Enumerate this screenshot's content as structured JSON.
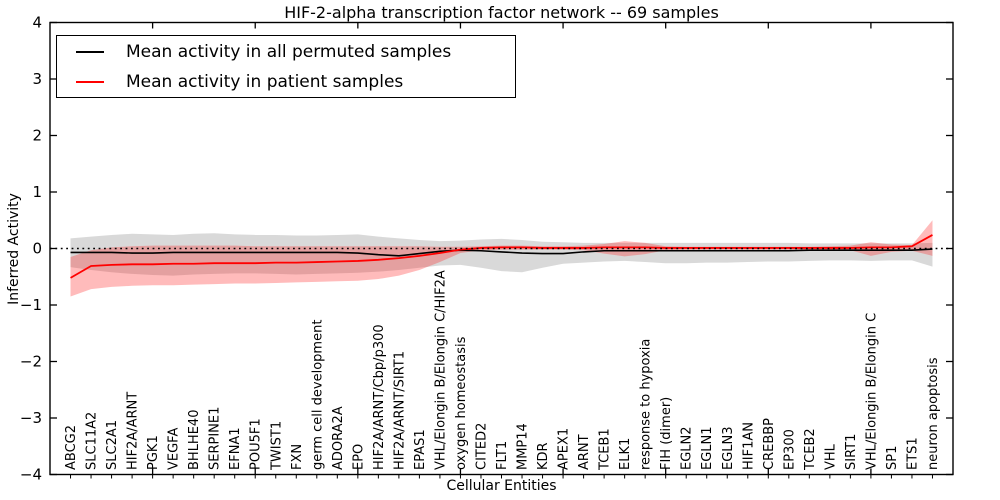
{
  "chart_data": {
    "type": "line",
    "title": "HIF-2-alpha transcription factor network -- 69 samples",
    "xlabel": "Cellular Entities",
    "ylabel": "Inferred Activity",
    "ylim": [
      -4,
      4
    ],
    "xlim": [
      0,
      44
    ],
    "grid": false,
    "legend_position": "upper left",
    "zero_reference_line": {
      "y": 0,
      "style": "dotted",
      "color": "#000000"
    },
    "yticks": [
      {
        "value": 4,
        "label": "4"
      },
      {
        "value": 3,
        "label": "3"
      },
      {
        "value": 2,
        "label": "2"
      },
      {
        "value": 1,
        "label": "1"
      },
      {
        "value": 0,
        "label": "0"
      },
      {
        "value": -1,
        "label": "−1"
      },
      {
        "value": -2,
        "label": "−2"
      },
      {
        "value": -3,
        "label": "−3"
      },
      {
        "value": -4,
        "label": "−4"
      }
    ],
    "xticks_major": [
      5,
      10,
      15,
      20,
      25,
      30,
      35,
      40
    ],
    "x_start": 1,
    "categories": [
      "ABCG2",
      "SLC11A2",
      "SLC2A1",
      "HIF2A/ARNT",
      "PGK1",
      "VEGFA",
      "BHLHE40",
      "SERPINE1",
      "EFNA1",
      "POU5F1",
      "TWIST1",
      "FXN",
      "germ cell development",
      "ADORA2A",
      "EPO",
      "HIF2A/ARNT/Cbp/p300",
      "HIF2A/ARNT/SIRT1",
      "EPAS1",
      "VHL/Elongin B/Elongin C/HIF2A",
      "oxygen homeostasis",
      "CITED2",
      "FLT1",
      "MMP14",
      "KDR",
      "APEX1",
      "ARNT",
      "TCEB1",
      "ELK1",
      "response to hypoxia",
      "FIH (dimer)",
      "EGLN2",
      "EGLN1",
      "EGLN3",
      "HIF1AN",
      "CREBBP",
      "EP300",
      "TCEB2",
      "VHL",
      "SIRT1",
      "VHL/Elongin B/Elongin C",
      "SP1",
      "ETS1",
      "neuron apoptosis"
    ],
    "series": [
      {
        "name": "Mean activity in all permuted samples",
        "color": "#000000",
        "band_color": "rgba(120,120,120,0.28)",
        "line_width": 1.6,
        "values": [
          -0.07,
          -0.07,
          -0.07,
          -0.08,
          -0.08,
          -0.07,
          -0.07,
          -0.07,
          -0.07,
          -0.07,
          -0.07,
          -0.07,
          -0.07,
          -0.07,
          -0.08,
          -0.11,
          -0.13,
          -0.09,
          -0.05,
          -0.03,
          -0.04,
          -0.06,
          -0.08,
          -0.09,
          -0.09,
          -0.06,
          -0.04,
          -0.04,
          -0.04,
          -0.04,
          -0.04,
          -0.04,
          -0.04,
          -0.04,
          -0.04,
          -0.04,
          -0.03,
          -0.03,
          -0.03,
          -0.03,
          -0.03,
          -0.03,
          -0.01
        ],
        "band_upper": [
          0.18,
          0.21,
          0.24,
          0.26,
          0.25,
          0.24,
          0.26,
          0.27,
          0.25,
          0.24,
          0.24,
          0.23,
          0.23,
          0.24,
          0.25,
          0.21,
          0.18,
          0.15,
          0.13,
          0.14,
          0.16,
          0.17,
          0.15,
          0.12,
          0.11,
          0.1,
          0.1,
          0.1,
          0.1,
          0.1,
          0.1,
          0.1,
          0.1,
          0.1,
          0.1,
          0.1,
          0.09,
          0.09,
          0.09,
          0.09,
          0.09,
          0.09,
          0.1
        ],
        "band_lower": [
          -0.33,
          -0.38,
          -0.42,
          -0.45,
          -0.47,
          -0.48,
          -0.46,
          -0.45,
          -0.44,
          -0.44,
          -0.45,
          -0.46,
          -0.45,
          -0.44,
          -0.43,
          -0.41,
          -0.38,
          -0.34,
          -0.3,
          -0.29,
          -0.34,
          -0.4,
          -0.42,
          -0.34,
          -0.27,
          -0.25,
          -0.23,
          -0.22,
          -0.24,
          -0.26,
          -0.26,
          -0.25,
          -0.25,
          -0.24,
          -0.23,
          -0.23,
          -0.22,
          -0.21,
          -0.21,
          -0.22,
          -0.21,
          -0.21,
          -0.32
        ]
      },
      {
        "name": "Mean activity in patient samples",
        "color": "#ff0000",
        "band_color": "rgba(255,30,30,0.30)",
        "line_width": 1.8,
        "values": [
          -0.52,
          -0.31,
          -0.29,
          -0.28,
          -0.28,
          -0.27,
          -0.27,
          -0.26,
          -0.26,
          -0.26,
          -0.25,
          -0.25,
          -0.24,
          -0.23,
          -0.22,
          -0.2,
          -0.17,
          -0.13,
          -0.08,
          -0.02,
          0.01,
          0.02,
          0.02,
          0.01,
          0.01,
          0.01,
          0.02,
          0.02,
          0.02,
          0.01,
          0.01,
          0.01,
          0.01,
          0.01,
          0.01,
          0.01,
          0.01,
          0.01,
          0.01,
          0.02,
          0.02,
          0.04,
          0.24
        ],
        "band_upper": [
          -0.15,
          -0.03,
          0.02,
          0.04,
          0.05,
          0.05,
          0.05,
          0.05,
          0.05,
          0.04,
          0.04,
          0.04,
          0.04,
          0.04,
          0.04,
          0.04,
          0.04,
          0.04,
          0.03,
          0.03,
          0.04,
          0.05,
          0.05,
          0.04,
          0.04,
          0.05,
          0.08,
          0.13,
          0.1,
          0.04,
          0.03,
          0.03,
          0.03,
          0.03,
          0.03,
          0.03,
          0.03,
          0.04,
          0.05,
          0.11,
          0.07,
          0.06,
          0.5
        ],
        "band_lower": [
          -0.85,
          -0.72,
          -0.68,
          -0.66,
          -0.65,
          -0.65,
          -0.64,
          -0.63,
          -0.62,
          -0.62,
          -0.61,
          -0.6,
          -0.59,
          -0.58,
          -0.57,
          -0.54,
          -0.48,
          -0.38,
          -0.24,
          -0.08,
          -0.03,
          -0.02,
          -0.02,
          -0.02,
          -0.02,
          -0.03,
          -0.09,
          -0.14,
          -0.1,
          -0.03,
          -0.02,
          -0.02,
          -0.02,
          -0.02,
          -0.02,
          -0.02,
          -0.02,
          -0.02,
          -0.03,
          -0.13,
          -0.06,
          -0.04,
          -0.13
        ]
      }
    ]
  }
}
